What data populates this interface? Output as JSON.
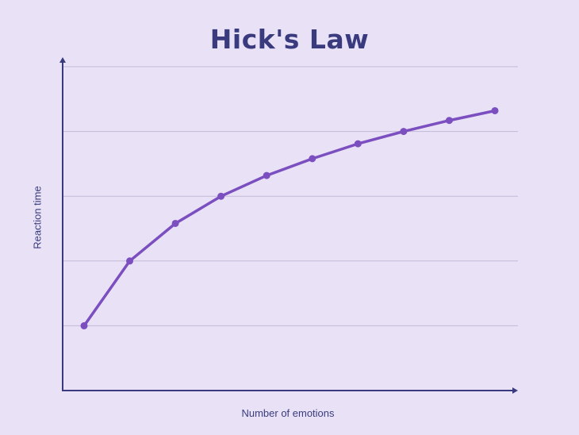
{
  "chart_data": {
    "type": "line",
    "title": "Hick's Law",
    "xlabel": "Number of emotions",
    "ylabel": "Reaction time",
    "x": [
      1,
      2,
      3,
      4,
      5,
      6,
      7,
      8,
      9,
      10
    ],
    "series": [
      {
        "values": [
          1.0,
          2.0,
          2.58,
          3.0,
          3.32,
          3.58,
          3.81,
          4.0,
          4.17,
          4.32
        ]
      }
    ],
    "xlim": [
      0.5,
      10.0
    ],
    "ylim": [
      0,
      5
    ],
    "y_gridlines": [
      1,
      2,
      3,
      4,
      5
    ],
    "tick_labels_shown": false,
    "grid": true,
    "legend": "none",
    "axis_arrows": true,
    "colors": {
      "background": "#e9e2f6",
      "line": "#7b4fc0",
      "axis": "#3a3b7e",
      "grid": "#c2b9d6",
      "text": "#3a3b7e"
    }
  }
}
